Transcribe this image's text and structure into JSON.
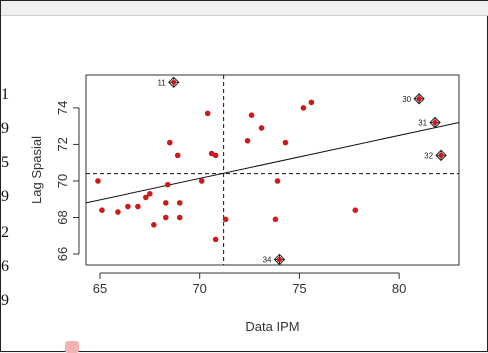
{
  "edge_digits": [
    "1",
    "9",
    "5",
    "9",
    "2",
    "6",
    "9"
  ],
  "colors": {
    "point": "#cc1a1a",
    "axis": "#333333",
    "regression": "#111111",
    "reference_lines": "#111111",
    "background": "#ffffff"
  },
  "chart_data": {
    "type": "scatter",
    "title": "",
    "xlabel": "Data IPM",
    "ylabel": "Lag Spasial",
    "xlim": [
      64.3,
      83.0
    ],
    "ylim": [
      65.4,
      75.8
    ],
    "xticks": [
      "65",
      "70",
      "75",
      "80"
    ],
    "yticks": [
      "66",
      "68",
      "70",
      "72",
      "74"
    ],
    "grid": false,
    "reference_lines": {
      "x_mean": 71.2,
      "y_mean": 70.4
    },
    "regression_line": {
      "x": [
        64.3,
        83.0
      ],
      "y": [
        68.8,
        73.2
      ]
    },
    "points": [
      {
        "x": 64.9,
        "y": 70.0
      },
      {
        "x": 65.1,
        "y": 68.4
      },
      {
        "x": 65.9,
        "y": 68.3
      },
      {
        "x": 66.4,
        "y": 68.6
      },
      {
        "x": 66.9,
        "y": 68.6
      },
      {
        "x": 67.3,
        "y": 69.1
      },
      {
        "x": 67.5,
        "y": 69.3
      },
      {
        "x": 67.7,
        "y": 67.6
      },
      {
        "x": 68.3,
        "y": 68.0
      },
      {
        "x": 68.3,
        "y": 68.8
      },
      {
        "x": 68.4,
        "y": 69.8
      },
      {
        "x": 68.5,
        "y": 72.1
      },
      {
        "x": 68.9,
        "y": 71.4
      },
      {
        "x": 69.0,
        "y": 68.0
      },
      {
        "x": 69.0,
        "y": 68.8
      },
      {
        "x": 70.1,
        "y": 70.0
      },
      {
        "x": 70.4,
        "y": 73.7
      },
      {
        "x": 70.6,
        "y": 71.5
      },
      {
        "x": 70.8,
        "y": 71.4
      },
      {
        "x": 70.8,
        "y": 66.8
      },
      {
        "x": 71.3,
        "y": 67.9
      },
      {
        "x": 72.4,
        "y": 72.2
      },
      {
        "x": 72.6,
        "y": 73.6
      },
      {
        "x": 73.1,
        "y": 72.9
      },
      {
        "x": 73.8,
        "y": 67.9
      },
      {
        "x": 73.9,
        "y": 70.0
      },
      {
        "x": 74.3,
        "y": 72.1
      },
      {
        "x": 75.2,
        "y": 74.0
      },
      {
        "x": 75.6,
        "y": 74.3
      },
      {
        "x": 77.8,
        "y": 68.4
      }
    ],
    "labeled_points": [
      {
        "label": "11",
        "x": 68.7,
        "y": 75.4
      },
      {
        "label": "30",
        "x": 81.0,
        "y": 74.5
      },
      {
        "label": "31",
        "x": 81.8,
        "y": 73.2
      },
      {
        "label": "32",
        "x": 82.1,
        "y": 71.4
      },
      {
        "label": "34",
        "x": 74.0,
        "y": 65.7
      }
    ]
  }
}
